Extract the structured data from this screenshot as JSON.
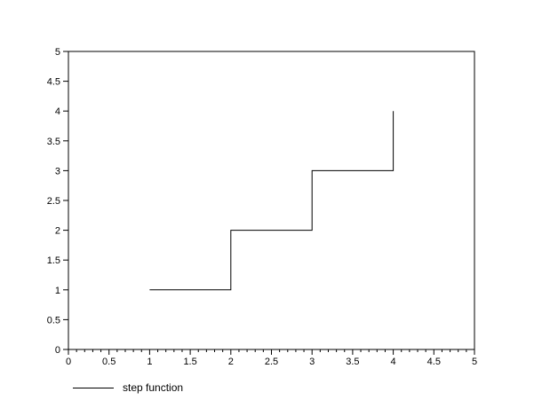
{
  "figure": {
    "background": "#ffffff",
    "legend": {
      "label": "step function",
      "position": "bottom-left"
    }
  },
  "chart_data": {
    "type": "line",
    "title": "",
    "xlabel": "",
    "ylabel": "",
    "series": [
      {
        "name": "step function",
        "color": "#000000",
        "points": [
          [
            1,
            1
          ],
          [
            2,
            1
          ],
          [
            2,
            2
          ],
          [
            3,
            2
          ],
          [
            3,
            3
          ],
          [
            4,
            3
          ],
          [
            4,
            4
          ]
        ]
      }
    ],
    "xlim": [
      0,
      5
    ],
    "ylim": [
      0,
      5
    ],
    "x_tick_labels": [
      "0",
      "0.5",
      "1",
      "1.5",
      "2",
      "2.5",
      "3",
      "3.5",
      "4",
      "4.5",
      "5"
    ],
    "y_tick_labels": [
      "0",
      "0.5",
      "1",
      "1.5",
      "2",
      "2.5",
      "3",
      "3.5",
      "4",
      "4.5",
      "5"
    ],
    "x_minor_tick_step": 0.1,
    "y_minor_tick_step": null,
    "grid": false,
    "box": true,
    "legend_position": "bottom-left",
    "axis_color": "#000000",
    "text_color": "#000000",
    "background_color": "#ffffff"
  }
}
